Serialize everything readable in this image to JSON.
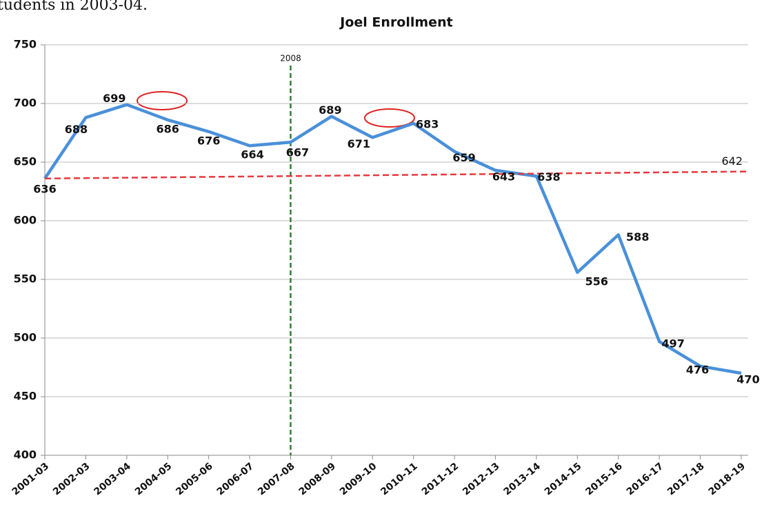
{
  "header_text": "tudents in 2003-04.",
  "chart_data": {
    "type": "line",
    "title": "Joel Enrollment",
    "categories": [
      "2001-03",
      "2002-03",
      "2003-04",
      "2004-05",
      "2005-06",
      "2006-07",
      "2007-08",
      "2008-09",
      "2009-10",
      "2010-11",
      "2011-12",
      "2012-13",
      "2013-14",
      "2014-15",
      "2015-16",
      "2016-17",
      "2017-18",
      "2018-19"
    ],
    "values": [
      636,
      688,
      699,
      686,
      676,
      664,
      667,
      689,
      671,
      683,
      659,
      643,
      638,
      556,
      588,
      497,
      476,
      470
    ],
    "color": "#4a90d9",
    "ylim": [
      400,
      750
    ],
    "yticks": [
      400,
      450,
      500,
      550,
      600,
      650,
      700,
      750
    ],
    "grid": true,
    "vline": {
      "at": "2007-08",
      "label": "2008",
      "color": "#2e7d32"
    },
    "trend_line": {
      "start": 636,
      "end": 642,
      "color": "#e8383d"
    }
  }
}
